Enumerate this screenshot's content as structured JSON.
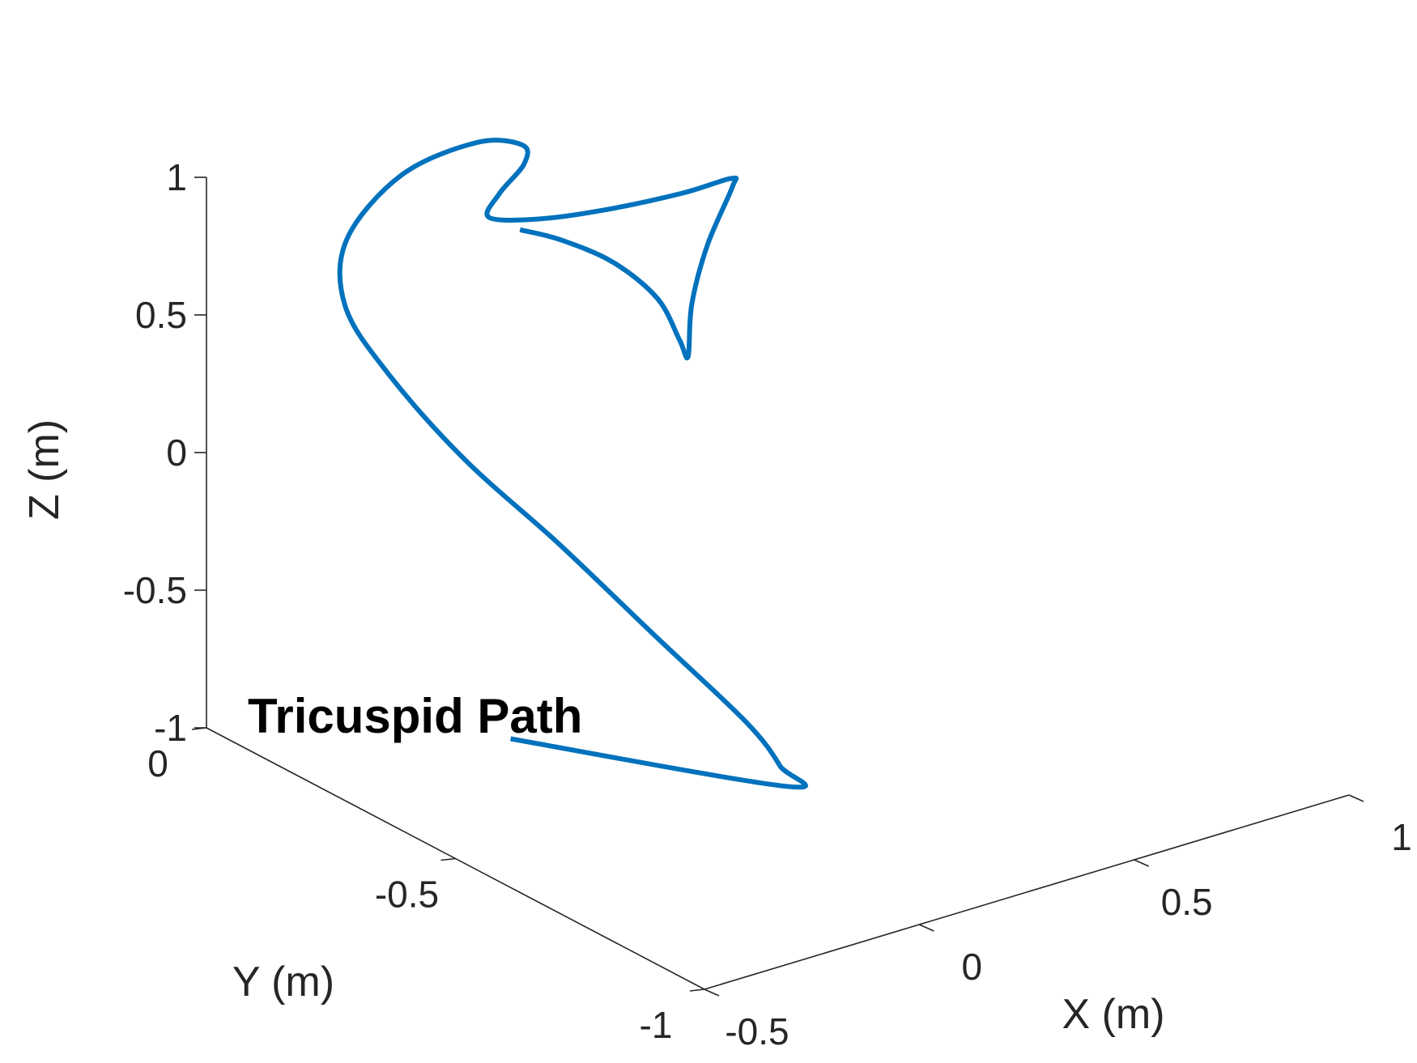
{
  "chart_data": {
    "type": "line3d",
    "title": "",
    "annotation": "Tricuspid Path",
    "xlabel": "X (m)",
    "ylabel": "Y (m)",
    "zlabel": "Z (m)",
    "xlim": [
      -0.5,
      1
    ],
    "ylim": [
      -1,
      0
    ],
    "zlim": [
      -1,
      1
    ],
    "xticks": [
      "-0.5",
      "0",
      "0.5",
      "1"
    ],
    "yticks": [
      "-1",
      "-0.5",
      "0"
    ],
    "zticks": [
      "-1",
      "-0.5",
      "0",
      "0.5",
      "1"
    ],
    "grid": false,
    "line_color": "#0072BD",
    "series": [
      {
        "points": [
          [
            -0.36,
            -0.49,
            -0.64
          ],
          [
            0.06,
            -0.68,
            -0.83
          ],
          [
            0.07,
            -0.66,
            -0.78
          ],
          [
            0.05,
            -0.61,
            -0.66
          ],
          [
            -0.03,
            -0.5,
            -0.42
          ],
          [
            -0.12,
            -0.38,
            -0.15
          ],
          [
            -0.2,
            -0.26,
            0.08
          ],
          [
            -0.25,
            -0.15,
            0.31
          ],
          [
            -0.27,
            -0.08,
            0.5
          ],
          [
            -0.22,
            -0.04,
            0.68
          ],
          [
            -0.08,
            -0.03,
            0.84
          ],
          [
            0.06,
            -0.06,
            0.92
          ],
          [
            0.12,
            -0.1,
            0.92
          ],
          [
            0.1,
            -0.12,
            0.88
          ],
          [
            0.02,
            -0.14,
            0.83
          ],
          [
            -0.04,
            -0.17,
            0.8
          ],
          [
            0.05,
            -0.19,
            0.77
          ],
          [
            0.18,
            -0.21,
            0.76
          ],
          [
            0.33,
            -0.24,
            0.78
          ],
          [
            0.42,
            -0.26,
            0.81
          ],
          [
            0.41,
            -0.27,
            0.79
          ],
          [
            0.33,
            -0.29,
            0.64
          ],
          [
            0.27,
            -0.31,
            0.47
          ],
          [
            0.25,
            -0.32,
            0.3
          ],
          [
            0.23,
            -0.32,
            0.37
          ],
          [
            0.19,
            -0.31,
            0.53
          ],
          [
            0.11,
            -0.29,
            0.68
          ],
          [
            0.01,
            -0.27,
            0.79
          ],
          [
            -0.06,
            -0.25,
            0.84
          ]
        ]
      }
    ]
  }
}
